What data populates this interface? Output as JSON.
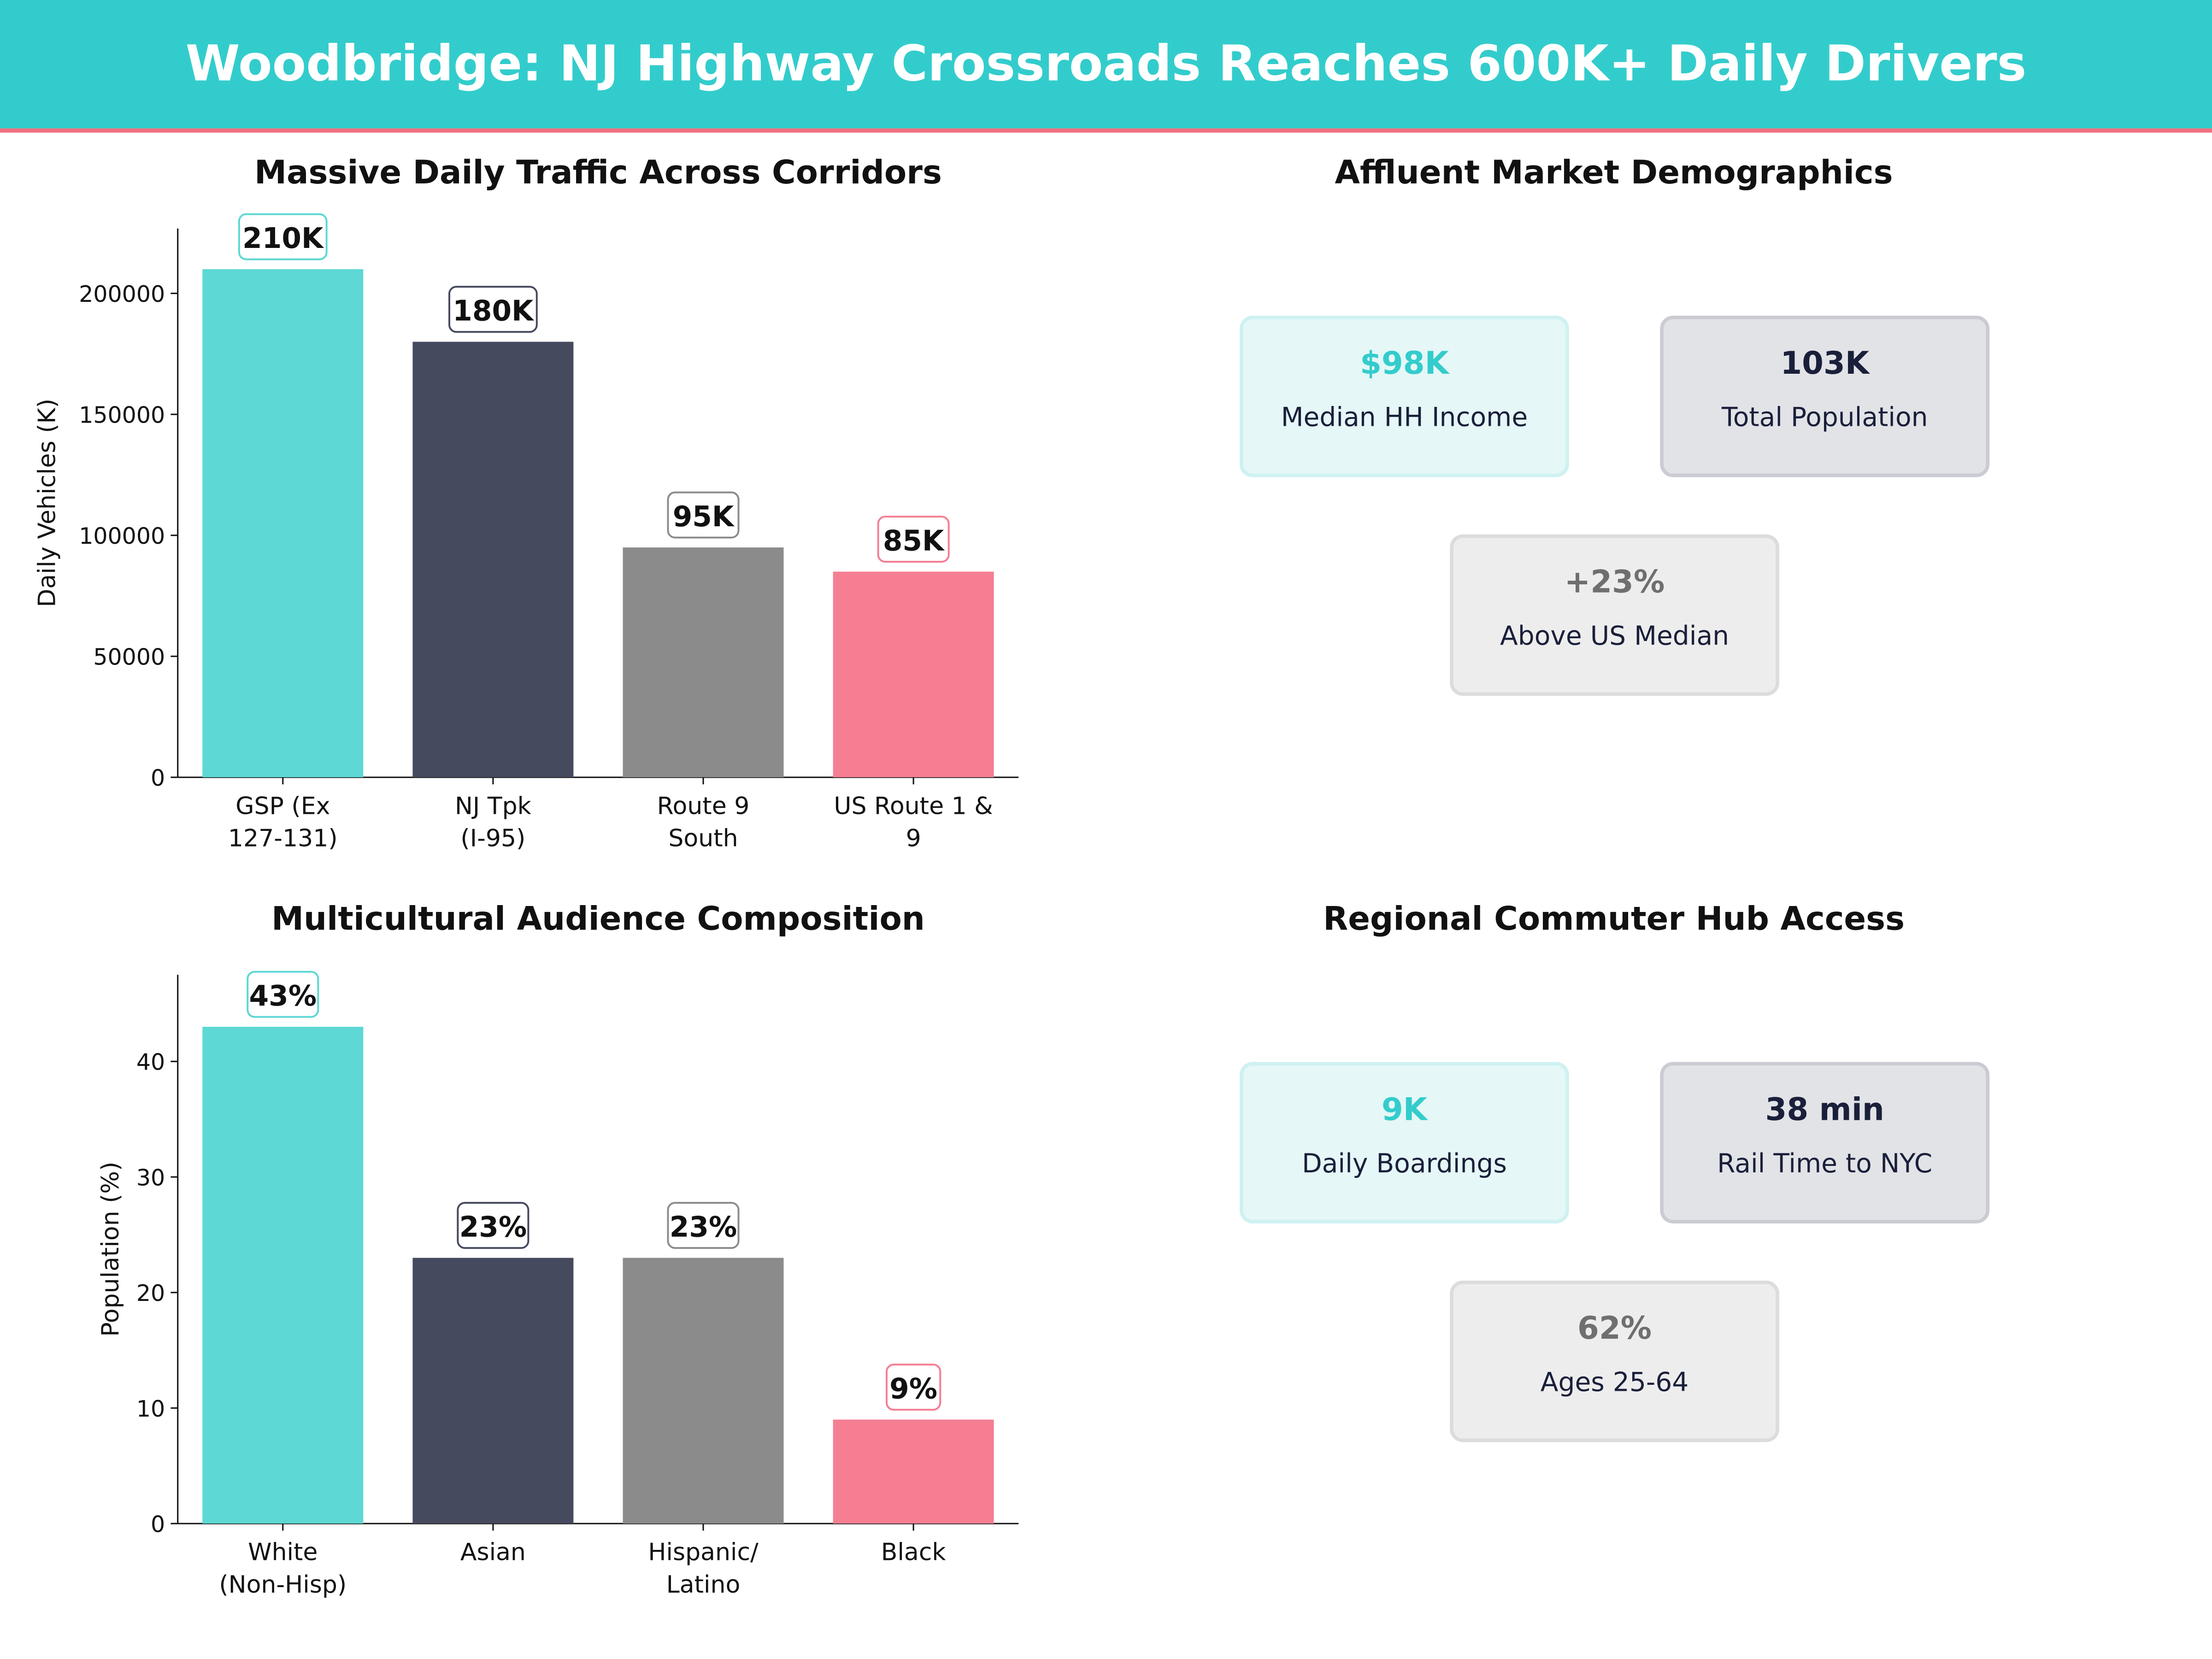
{
  "header": {
    "title": "Woodbridge: NJ Highway Crossroads Reaches 600K+ Daily Drivers",
    "bg_color": "#33CCCC",
    "accent_line_color": "#F07080"
  },
  "colors": {
    "teal": "#5DD8D4",
    "navy": "#464A5F",
    "gray": "#8B8B8B",
    "pink": "#F57E92"
  },
  "chart_data": [
    {
      "type": "bar",
      "title": "Massive Daily Traffic Across Corridors",
      "xlabel": "",
      "ylabel": "Daily Vehicles (K)",
      "categories": [
        [
          "GSP (Ex",
          "127-131)"
        ],
        [
          "NJ Tpk",
          "(I-95)"
        ],
        [
          "Route 9",
          "South"
        ],
        [
          "US Route 1 &",
          "9"
        ]
      ],
      "values": [
        210000,
        180000,
        95000,
        85000
      ],
      "data_labels": [
        "210K",
        "180K",
        "95K",
        "85K"
      ],
      "yticks": [
        0,
        50000,
        100000,
        150000,
        200000
      ],
      "ylim": [
        0,
        226800
      ],
      "grid": false
    },
    {
      "type": "bar",
      "title": "Multicultural Audience Composition",
      "xlabel": "",
      "ylabel": "Population (%)",
      "categories": [
        [
          "White",
          "(Non-Hisp)"
        ],
        [
          "Asian"
        ],
        [
          "Hispanic/",
          "Latino"
        ],
        [
          "Black"
        ]
      ],
      "values": [
        43,
        23,
        23,
        9
      ],
      "data_labels": [
        "43%",
        "23%",
        "23%",
        "9%"
      ],
      "yticks": [
        0,
        10,
        20,
        30,
        40
      ],
      "ylim": [
        0,
        47.5
      ],
      "grid": false
    }
  ],
  "panels": [
    {
      "title": "Affluent Market Demographics",
      "cards": [
        {
          "value": "$98K",
          "label": "Median HH Income",
          "style": "teal"
        },
        {
          "value": "103K",
          "label": "Total Population",
          "style": "navy"
        },
        {
          "value": "+23%",
          "label": "Above US Median",
          "style": "gray"
        }
      ]
    },
    {
      "title": "Regional Commuter Hub Access",
      "cards": [
        {
          "value": "9K",
          "label": "Daily Boardings",
          "style": "teal"
        },
        {
          "value": "38 min",
          "label": "Rail Time to NYC",
          "style": "navy"
        },
        {
          "value": "62%",
          "label": "Ages 25-64",
          "style": "gray"
        }
      ]
    }
  ]
}
